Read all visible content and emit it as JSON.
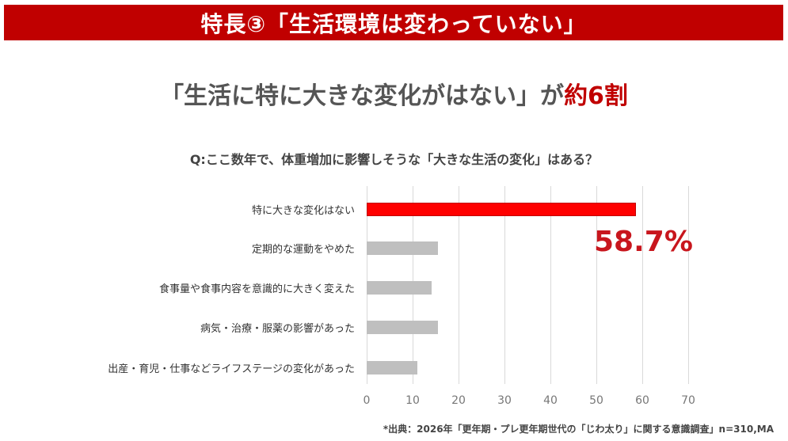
{
  "banner": {
    "title": "特長③「生活環境は変わっていない」"
  },
  "headline": {
    "text_main": "「生活に特に大きな変化がはない」が",
    "text_highlight": "約6割"
  },
  "question": "Q:ここ数年で、体重増加に影響しそうな「大きな生活の変化」はある？",
  "callout": "58.7%",
  "footnote": "*出典：2026年「更年期・プレ更年期世代の「じわ太り」に関する意識調査」n=310,MA",
  "colors": {
    "banner": "#c00000",
    "highlight_bar": "#ff0000",
    "other_bar": "#bfbfbf",
    "callout": "#c8161d"
  },
  "axis": {
    "ticks": [
      "0",
      "10",
      "20",
      "30",
      "40",
      "50",
      "60",
      "70"
    ]
  },
  "chart_data": {
    "type": "bar",
    "orientation": "horizontal",
    "title": "Q:ここ数年で、体重増加に影響しそうな「大きな生活の変化」はある？",
    "categories": [
      "特に大きな変化はない",
      "定期的な運動をやめた",
      "食事量や食事内容を意識的に大きく変えた",
      "病気・治療・服薬の影響があった",
      "出産・育児・仕事などライフステージの変化があった"
    ],
    "values": [
      58.7,
      15.5,
      14.1,
      15.5,
      11.0
    ],
    "xlabel": "",
    "ylabel": "",
    "xlim": [
      0,
      70
    ],
    "xticks": [
      0,
      10,
      20,
      30,
      40,
      50,
      60,
      70
    ],
    "grid": true,
    "legend": "none",
    "annotations": [
      {
        "text": "58.7%",
        "target": "特に大きな変化はない"
      }
    ]
  }
}
